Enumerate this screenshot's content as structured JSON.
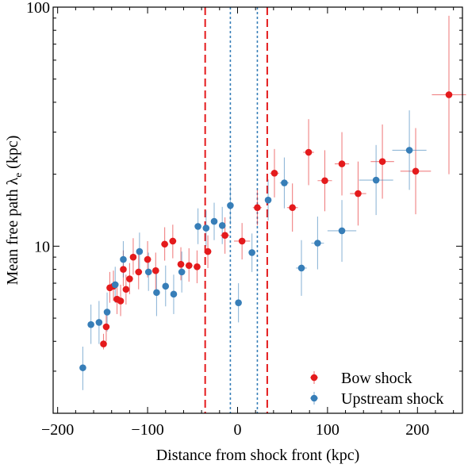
{
  "chart_data": {
    "type": "scatter",
    "xlabel": "Distance from shock front (kpc)",
    "ylabel": "Mean free path λ",
    "ylabel_sub": "e",
    "ylabel_unit": " (kpc)",
    "xlim": [
      -205,
      250
    ],
    "ylim": [
      2.0,
      100
    ],
    "yscale": "log",
    "x_ticks": [
      -200,
      -100,
      0,
      100,
      200
    ],
    "x_tick_labels": [
      "−200",
      "−100",
      "0",
      "100",
      "200"
    ],
    "y_ticks": [
      10,
      100
    ],
    "y_tick_labels": [
      "10",
      "100"
    ],
    "legend_position": "bottom-right",
    "vlines": [
      {
        "x": -36,
        "series": "Bow shock",
        "style": "dashed"
      },
      {
        "x": 33,
        "series": "Bow shock",
        "style": "dashed"
      },
      {
        "x": -8,
        "series": "Upstream shock",
        "style": "dotted"
      },
      {
        "x": 22,
        "series": "Upstream shock",
        "style": "dotted"
      }
    ],
    "series": [
      {
        "name": "Bow shock",
        "color": "#e41a1c",
        "points": [
          {
            "x": -149,
            "y": 3.9,
            "yerr": [
              3.7,
              4.3
            ],
            "xerr": 3
          },
          {
            "x": -146,
            "y": 4.6,
            "yerr": [
              4.0,
              5.4
            ],
            "xerr": 3
          },
          {
            "x": -142,
            "y": 6.7,
            "yerr": [
              5.8,
              7.8
            ],
            "xerr": 3
          },
          {
            "x": -138,
            "y": 6.8,
            "yerr": [
              5.9,
              7.9
            ],
            "xerr": 3
          },
          {
            "x": -134,
            "y": 6.0,
            "yerr": [
              5.2,
              6.9
            ],
            "xerr": 3
          },
          {
            "x": -130,
            "y": 5.9,
            "yerr": [
              5.1,
              6.9
            ],
            "xerr": 3
          },
          {
            "x": -127,
            "y": 8.0,
            "yerr": [
              6.8,
              9.6
            ],
            "xerr": 3
          },
          {
            "x": -124,
            "y": 6.6,
            "yerr": [
              5.7,
              7.6
            ],
            "xerr": 3
          },
          {
            "x": -120,
            "y": 7.3,
            "yerr": [
              6.3,
              8.5
            ],
            "xerr": 3
          },
          {
            "x": -116,
            "y": 9.0,
            "yerr": [
              7.6,
              10.8
            ],
            "xerr": 3
          },
          {
            "x": -110,
            "y": 7.8,
            "yerr": [
              6.6,
              9.3
            ],
            "xerr": 4
          },
          {
            "x": -100,
            "y": 8.8,
            "yerr": [
              7.4,
              10.5
            ],
            "xerr": 4
          },
          {
            "x": -91,
            "y": 7.9,
            "yerr": [
              6.6,
              9.4
            ],
            "xerr": 4
          },
          {
            "x": -81,
            "y": 10.2,
            "yerr": [
              8.7,
              12.0
            ],
            "xerr": 4
          },
          {
            "x": -72,
            "y": 10.5,
            "yerr": [
              8.9,
              12.3
            ],
            "xerr": 4
          },
          {
            "x": -63,
            "y": 8.4,
            "yerr": [
              7.2,
              9.9
            ],
            "xerr": 4
          },
          {
            "x": -54,
            "y": 8.3,
            "yerr": [
              7.1,
              9.8
            ],
            "xerr": 4
          },
          {
            "x": -45,
            "y": 8.2,
            "yerr": [
              7.0,
              9.6
            ],
            "xerr": 4
          },
          {
            "x": -33,
            "y": 9.5,
            "yerr": [
              8.1,
              11.1
            ],
            "xerr": 4
          },
          {
            "x": -14,
            "y": 11.1,
            "yerr": [
              9.3,
              13.2
            ],
            "xerr": 5
          },
          {
            "x": 5,
            "y": 10.5,
            "yerr": [
              8.8,
              12.5
            ],
            "xerr": 9
          },
          {
            "x": 22,
            "y": 14.5,
            "yerr": [
              12.2,
              17.2
            ],
            "xerr": 5
          },
          {
            "x": 41,
            "y": 20.2,
            "yerr": [
              16.0,
              25.5
            ],
            "xerr": 5
          },
          {
            "x": 61,
            "y": 14.5,
            "yerr": [
              11.5,
              18.3
            ],
            "xerr": 6
          },
          {
            "x": 79,
            "y": 24.7,
            "yerr": [
              18.0,
              34.0
            ],
            "xerr": 6
          },
          {
            "x": 97,
            "y": 18.8,
            "yerr": [
              14.0,
              25.2
            ],
            "xerr": 8
          },
          {
            "x": 116,
            "y": 22.1,
            "yerr": [
              16.3,
              30.0
            ],
            "xerr": 8
          },
          {
            "x": 134,
            "y": 16.6,
            "yerr": [
              12.2,
              22.6
            ],
            "xerr": 9
          },
          {
            "x": 161,
            "y": 22.6,
            "yerr": [
              15.8,
              32.3
            ],
            "xerr": 13
          },
          {
            "x": 198,
            "y": 20.6,
            "yerr": [
              13.6,
              31.2
            ],
            "xerr": 17
          },
          {
            "x": 235,
            "y": 43.0,
            "yerr": [
              20.0,
              92.0
            ],
            "xerr": 19
          }
        ]
      },
      {
        "name": "Upstream shock",
        "color": "#377eb8",
        "points": [
          {
            "x": -172,
            "y": 3.1,
            "yerr": [
              2.5,
              3.8
            ],
            "xerr": 3
          },
          {
            "x": -163,
            "y": 4.7,
            "yerr": [
              3.9,
              5.7
            ],
            "xerr": 3
          },
          {
            "x": -154,
            "y": 4.8,
            "yerr": [
              3.9,
              5.9
            ],
            "xerr": 3
          },
          {
            "x": -145,
            "y": 5.3,
            "yerr": [
              4.4,
              6.4
            ],
            "xerr": 3
          },
          {
            "x": -136,
            "y": 6.9,
            "yerr": [
              5.8,
              8.2
            ],
            "xerr": 3
          },
          {
            "x": -127,
            "y": 8.8,
            "yerr": [
              7.4,
              10.5
            ],
            "xerr": 3
          },
          {
            "x": -109,
            "y": 9.5,
            "yerr": [
              7.9,
              11.4
            ],
            "xerr": 3
          },
          {
            "x": -99,
            "y": 7.8,
            "yerr": [
              6.5,
              9.4
            ],
            "xerr": 3
          },
          {
            "x": -90,
            "y": 6.4,
            "yerr": [
              5.1,
              8.0
            ],
            "xerr": 3
          },
          {
            "x": -80,
            "y": 6.8,
            "yerr": [
              5.6,
              8.3
            ],
            "xerr": 3
          },
          {
            "x": -71,
            "y": 6.3,
            "yerr": [
              5.2,
              7.6
            ],
            "xerr": 3
          },
          {
            "x": -62,
            "y": 7.8,
            "yerr": [
              6.4,
              9.5
            ],
            "xerr": 3
          },
          {
            "x": -44,
            "y": 12.1,
            "yerr": [
              10.2,
              14.4
            ],
            "xerr": 3
          },
          {
            "x": -35,
            "y": 11.9,
            "yerr": [
              10.0,
              14.1
            ],
            "xerr": 3
          },
          {
            "x": -26,
            "y": 12.7,
            "yerr": [
              10.6,
              15.2
            ],
            "xerr": 3
          },
          {
            "x": -17,
            "y": 12.2,
            "yerr": [
              10.2,
              14.6
            ],
            "xerr": 3
          },
          {
            "x": -8,
            "y": 14.8,
            "yerr": [
              12.3,
              17.8
            ],
            "xerr": 3
          },
          {
            "x": 1,
            "y": 5.8,
            "yerr": [
              4.8,
              7.0
            ],
            "xerr": 3
          },
          {
            "x": 16,
            "y": 9.4,
            "yerr": [
              7.8,
              11.3
            ],
            "xerr": 3
          },
          {
            "x": 34,
            "y": 15.6,
            "yerr": [
              12.8,
              19.0
            ],
            "xerr": 3
          },
          {
            "x": 52,
            "y": 18.4,
            "yerr": [
              14.4,
              23.5
            ],
            "xerr": 5
          },
          {
            "x": 71,
            "y": 8.1,
            "yerr": [
              6.2,
              10.6
            ],
            "xerr": 6
          },
          {
            "x": 89,
            "y": 10.3,
            "yerr": [
              8.0,
              13.3
            ],
            "xerr": 7
          },
          {
            "x": 116,
            "y": 11.6,
            "yerr": [
              8.6,
              15.6
            ],
            "xerr": 16
          },
          {
            "x": 154,
            "y": 18.9,
            "yerr": [
              13.5,
              26.5
            ],
            "xerr": 19
          },
          {
            "x": 191,
            "y": 25.2,
            "yerr": [
              17.2,
              37.0
            ],
            "xerr": 19
          }
        ]
      }
    ]
  }
}
